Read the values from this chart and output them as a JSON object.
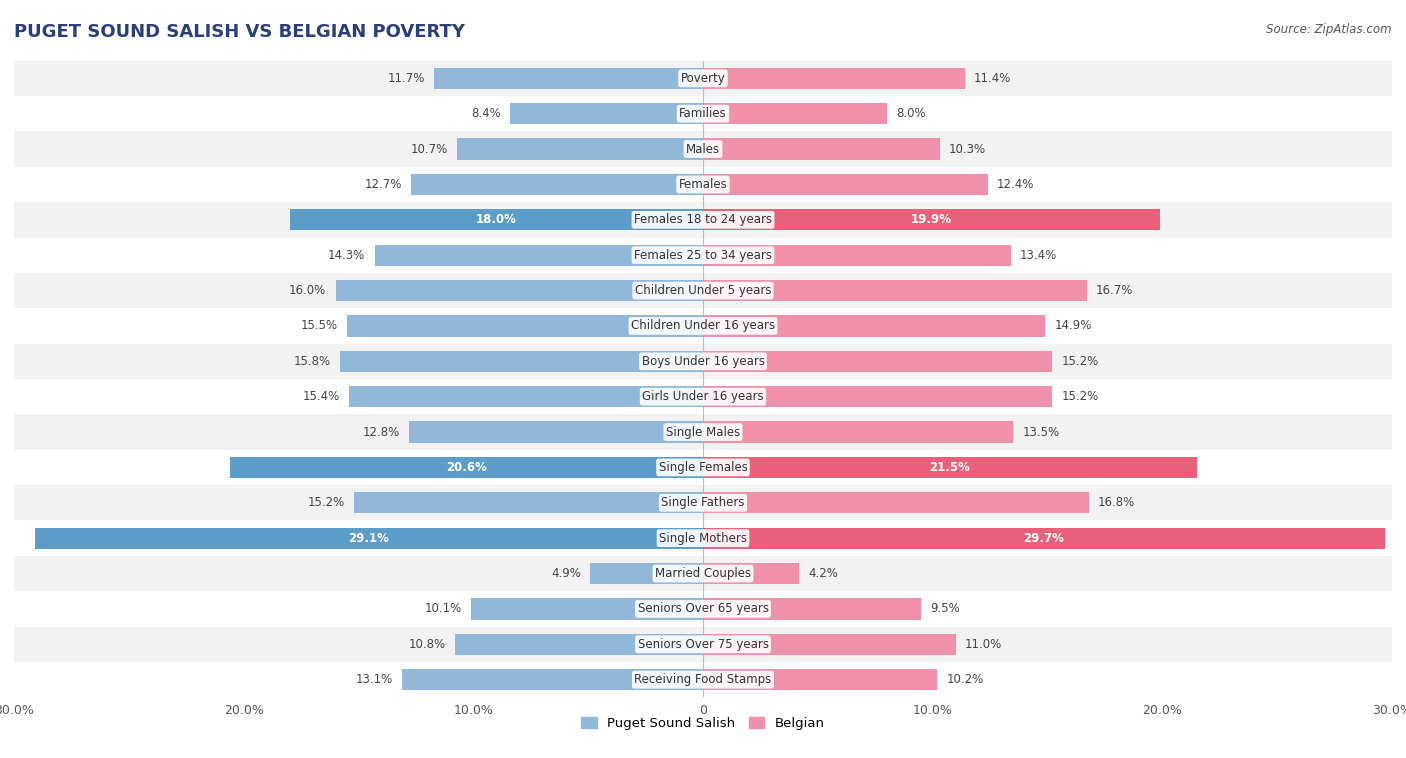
{
  "title": "PUGET SOUND SALISH VS BELGIAN POVERTY",
  "source": "Source: ZipAtlas.com",
  "categories": [
    "Poverty",
    "Families",
    "Males",
    "Females",
    "Females 18 to 24 years",
    "Females 25 to 34 years",
    "Children Under 5 years",
    "Children Under 16 years",
    "Boys Under 16 years",
    "Girls Under 16 years",
    "Single Males",
    "Single Females",
    "Single Fathers",
    "Single Mothers",
    "Married Couples",
    "Seniors Over 65 years",
    "Seniors Over 75 years",
    "Receiving Food Stamps"
  ],
  "left_values": [
    11.7,
    8.4,
    10.7,
    12.7,
    18.0,
    14.3,
    16.0,
    15.5,
    15.8,
    15.4,
    12.8,
    20.6,
    15.2,
    29.1,
    4.9,
    10.1,
    10.8,
    13.1
  ],
  "right_values": [
    11.4,
    8.0,
    10.3,
    12.4,
    19.9,
    13.4,
    16.7,
    14.9,
    15.2,
    15.2,
    13.5,
    21.5,
    16.8,
    29.7,
    4.2,
    9.5,
    11.0,
    10.2
  ],
  "left_color": "#91b8d9",
  "right_color": "#f090aa",
  "left_highlight_color": "#5b9cc9",
  "right_highlight_color": "#e8607a",
  "left_label": "Puget Sound Salish",
  "right_label": "Belgian",
  "axis_max": 30.0,
  "background_color": "#ffffff",
  "row_bg_even": "#f2f2f2",
  "row_bg_odd": "#ffffff",
  "title_fontsize": 13,
  "label_fontsize": 8.5,
  "value_fontsize": 8.5,
  "highlight_rows": [
    4,
    11,
    13
  ],
  "inside_threshold": 17.5
}
